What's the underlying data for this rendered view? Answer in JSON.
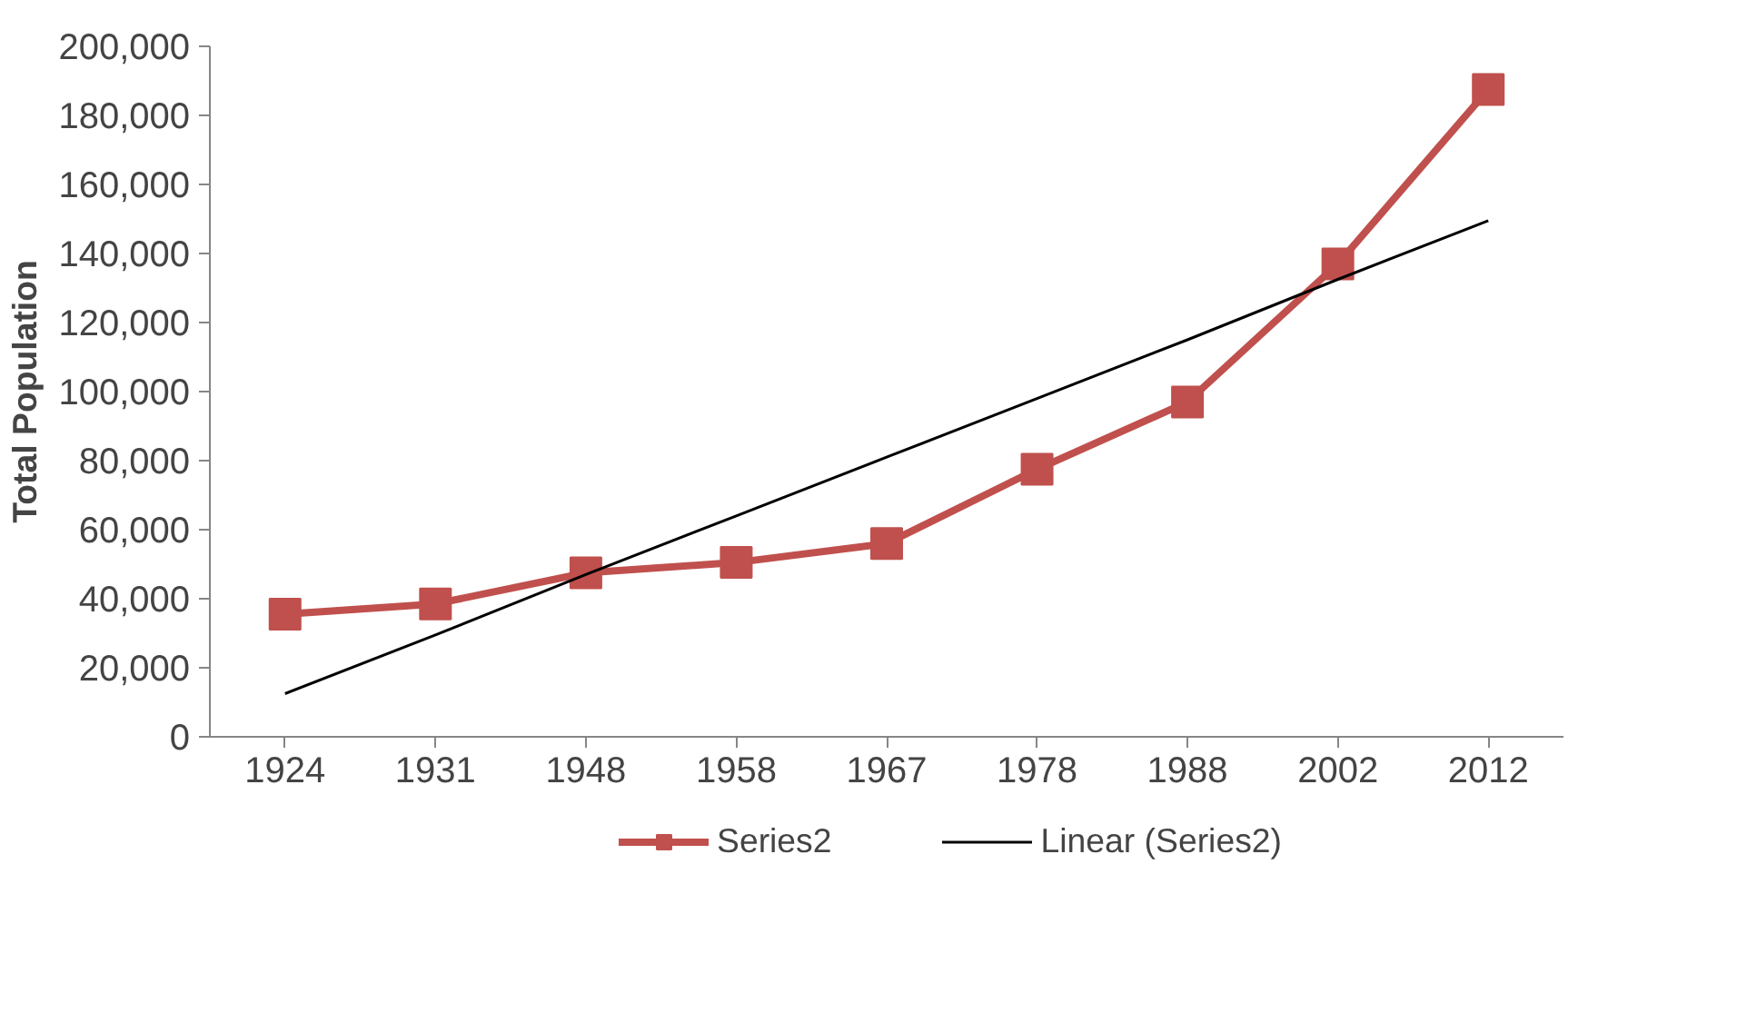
{
  "chart_data": {
    "type": "line",
    "ylabel": "Total Population",
    "categories": [
      "1924",
      "1931",
      "1948",
      "1958",
      "1967",
      "1978",
      "1988",
      "2002",
      "2012"
    ],
    "series": [
      {
        "name": "Series2",
        "color": "#c0504d",
        "marker": "square",
        "values": [
          35500,
          38500,
          47500,
          50500,
          56000,
          77500,
          97000,
          137000,
          187500
        ]
      },
      {
        "name": "Linear (Series2)",
        "color": "#000000",
        "marker": "none",
        "values": [
          12500,
          29500,
          47000,
          64000,
          81000,
          98000,
          115000,
          132500,
          149500
        ]
      }
    ],
    "ylim": [
      0,
      200000
    ],
    "yticks": [
      {
        "value": 0,
        "label": "0"
      },
      {
        "value": 20000,
        "label": "20,000"
      },
      {
        "value": 40000,
        "label": "40,000"
      },
      {
        "value": 60000,
        "label": "60,000"
      },
      {
        "value": 80000,
        "label": "80,000"
      },
      {
        "value": 100000,
        "label": "100,000"
      },
      {
        "value": 120000,
        "label": "120,000"
      },
      {
        "value": 140000,
        "label": "140,000"
      },
      {
        "value": 160000,
        "label": "160,000"
      },
      {
        "value": 180000,
        "label": "180,000"
      },
      {
        "value": 200000,
        "label": "200,000"
      }
    ],
    "grid": false,
    "legend": "bottom"
  }
}
